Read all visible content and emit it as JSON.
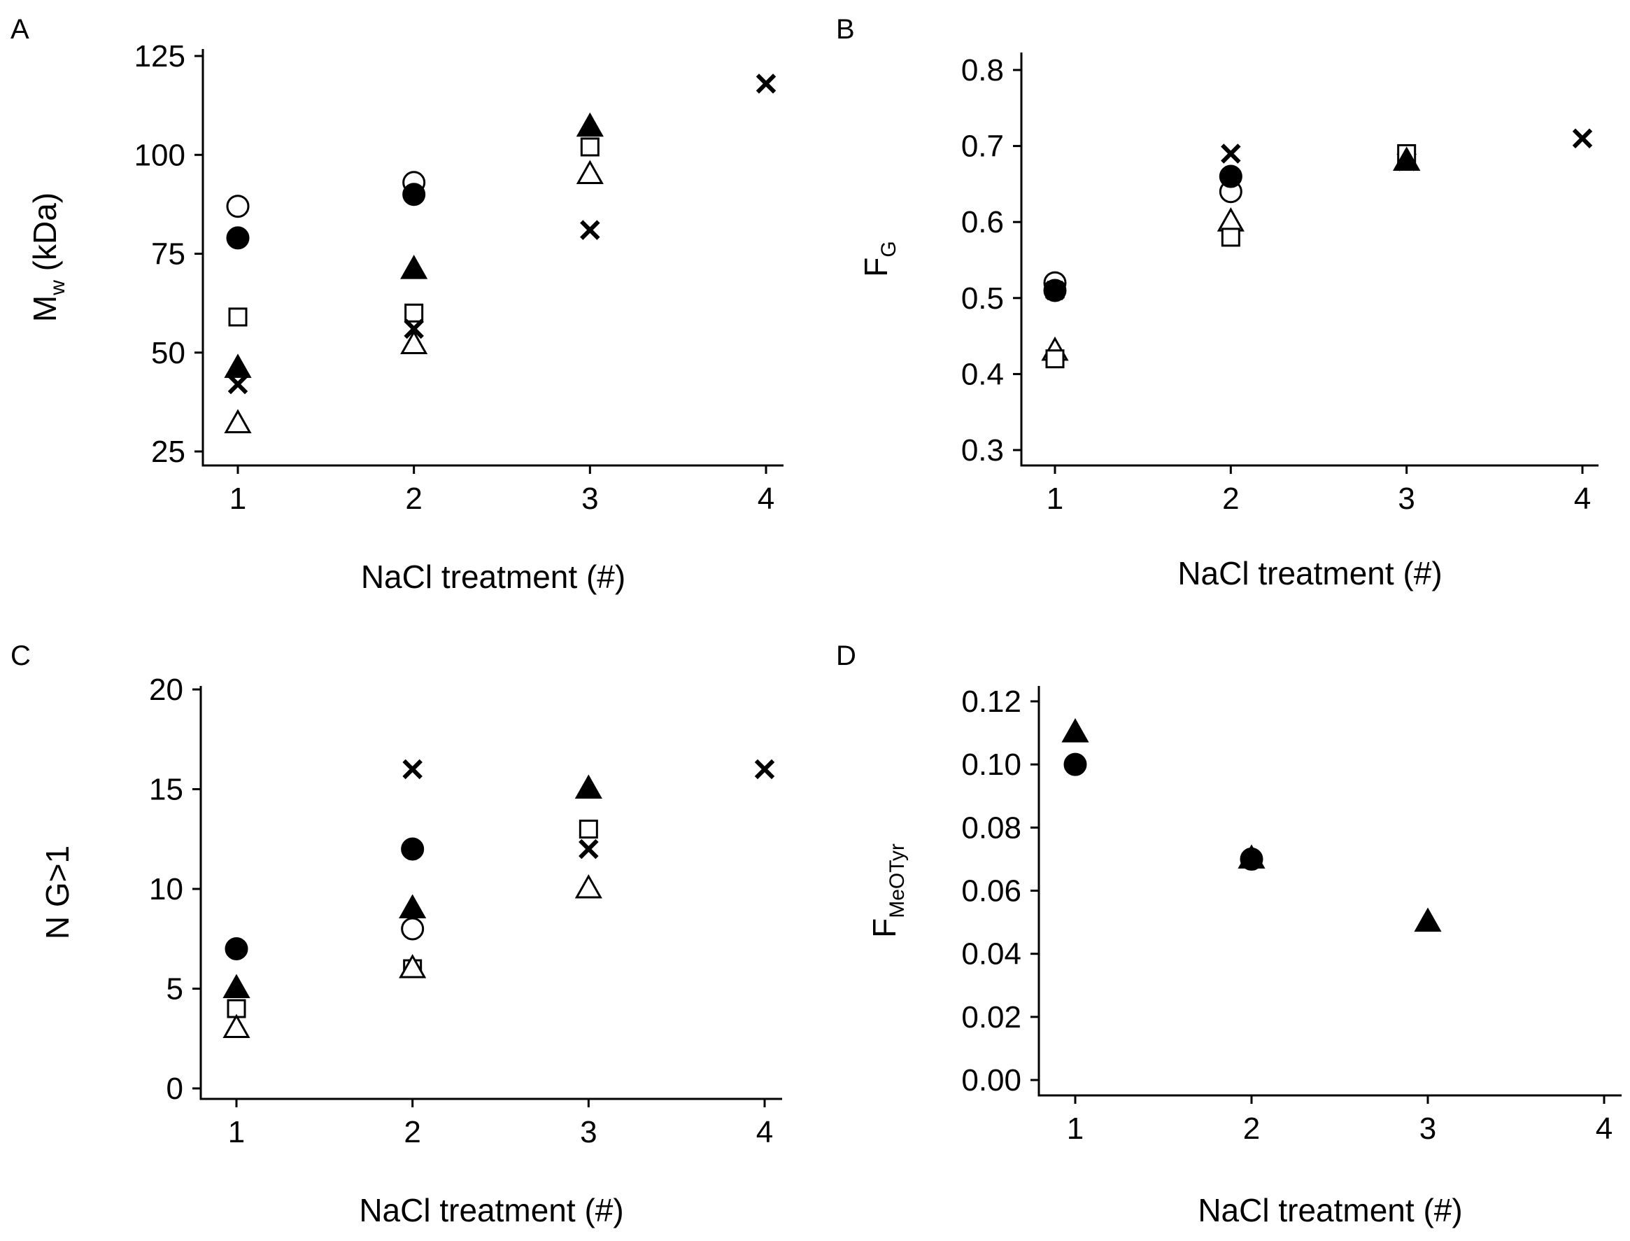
{
  "chart_data": [
    {
      "panel": "A",
      "type": "scatter",
      "xlabel": "NaCl treatment (#)",
      "ylabel_main": "M",
      "ylabel_sub": "w",
      "ylabel_tail": " (kDa)",
      "xlim": [
        1,
        4
      ],
      "ylim": [
        25,
        125
      ],
      "xticks": [
        1,
        2,
        3,
        4
      ],
      "yticks": [
        25,
        50,
        75,
        100,
        125
      ],
      "ytick_labels": [
        "25",
        "50",
        "75",
        "100",
        "125"
      ],
      "grid": false,
      "series": [
        {
          "marker": "circle-open",
          "x": [
            1,
            2
          ],
          "y": [
            87,
            93
          ]
        },
        {
          "marker": "circle-filled",
          "x": [
            1,
            2
          ],
          "y": [
            79,
            90
          ]
        },
        {
          "marker": "square-open",
          "x": [
            1,
            2,
            3
          ],
          "y": [
            59,
            60,
            102
          ]
        },
        {
          "marker": "triangle-filled",
          "x": [
            1,
            2,
            3
          ],
          "y": [
            46,
            71,
            107
          ]
        },
        {
          "marker": "cross",
          "x": [
            1,
            2,
            3,
            4
          ],
          "y": [
            42,
            56,
            81,
            118
          ]
        },
        {
          "marker": "triangle-open",
          "x": [
            1,
            2,
            3
          ],
          "y": [
            32,
            52,
            95
          ]
        }
      ]
    },
    {
      "panel": "B",
      "type": "scatter",
      "xlabel": "NaCl treatment (#)",
      "ylabel_main": "F",
      "ylabel_sub": "G",
      "ylabel_tail": "",
      "xlim": [
        1,
        4
      ],
      "ylim": [
        0.3,
        0.8
      ],
      "xticks": [
        1,
        2,
        3,
        4
      ],
      "yticks": [
        0.3,
        0.4,
        0.5,
        0.6,
        0.7,
        0.8
      ],
      "ytick_labels": [
        "0.3",
        "0.4",
        "0.5",
        "0.6",
        "0.7",
        "0.8"
      ],
      "grid": false,
      "series": [
        {
          "marker": "circle-open",
          "x": [
            1,
            2
          ],
          "y": [
            0.52,
            0.64
          ]
        },
        {
          "marker": "circle-filled",
          "x": [
            1,
            2
          ],
          "y": [
            0.51,
            0.66
          ]
        },
        {
          "marker": "cross",
          "x": [
            1,
            2,
            3,
            4
          ],
          "y": [
            0.51,
            0.69,
            0.68,
            0.71
          ]
        },
        {
          "marker": "triangle-open",
          "x": [
            1,
            2,
            3
          ],
          "y": [
            0.43,
            0.6,
            0.68
          ]
        },
        {
          "marker": "square-open",
          "x": [
            1,
            2,
            3
          ],
          "y": [
            0.42,
            0.58,
            0.69
          ]
        },
        {
          "marker": "triangle-filled",
          "x": [
            3
          ],
          "y": [
            0.68
          ]
        }
      ]
    },
    {
      "panel": "C",
      "type": "scatter",
      "xlabel": "NaCl treatment (#)",
      "ylabel_main": "N G>1",
      "ylabel_sub": "",
      "ylabel_tail": "",
      "xlim": [
        1,
        4
      ],
      "ylim": [
        0,
        20
      ],
      "xticks": [
        1,
        2,
        3,
        4
      ],
      "yticks": [
        0,
        5,
        10,
        15,
        20
      ],
      "ytick_labels": [
        "0",
        "5",
        "10",
        "15",
        "20"
      ],
      "grid": false,
      "series": [
        {
          "marker": "circle-filled",
          "x": [
            1,
            2
          ],
          "y": [
            7,
            12
          ]
        },
        {
          "marker": "circle-open",
          "x": [
            2
          ],
          "y": [
            8
          ]
        },
        {
          "marker": "triangle-filled",
          "x": [
            1,
            2,
            3
          ],
          "y": [
            5,
            9,
            15
          ]
        },
        {
          "marker": "square-open",
          "x": [
            1,
            2,
            3
          ],
          "y": [
            4,
            6,
            13
          ]
        },
        {
          "marker": "triangle-open",
          "x": [
            1,
            2,
            3
          ],
          "y": [
            3,
            6,
            10
          ]
        },
        {
          "marker": "cross",
          "x": [
            2,
            3,
            4
          ],
          "y": [
            16,
            12,
            16
          ]
        }
      ]
    },
    {
      "panel": "D",
      "type": "scatter",
      "xlabel": "NaCl treatment (#)",
      "ylabel_main": "F",
      "ylabel_sub": "MeOTyr",
      "ylabel_tail": "",
      "xlim": [
        1,
        4
      ],
      "ylim": [
        0,
        0.12
      ],
      "xticks": [
        1,
        2,
        3,
        4
      ],
      "yticks": [
        0,
        0.02,
        0.04,
        0.06,
        0.08,
        0.1,
        0.12
      ],
      "ytick_labels": [
        "0.00",
        "0.02",
        "0.04",
        "0.06",
        "0.08",
        "0.10",
        "0.12"
      ],
      "grid": false,
      "series": [
        {
          "marker": "triangle-filled",
          "x": [
            1,
            2,
            3
          ],
          "y": [
            0.11,
            0.07,
            0.05
          ]
        },
        {
          "marker": "circle-filled",
          "x": [
            1,
            2
          ],
          "y": [
            0.1,
            0.07
          ]
        }
      ]
    }
  ]
}
